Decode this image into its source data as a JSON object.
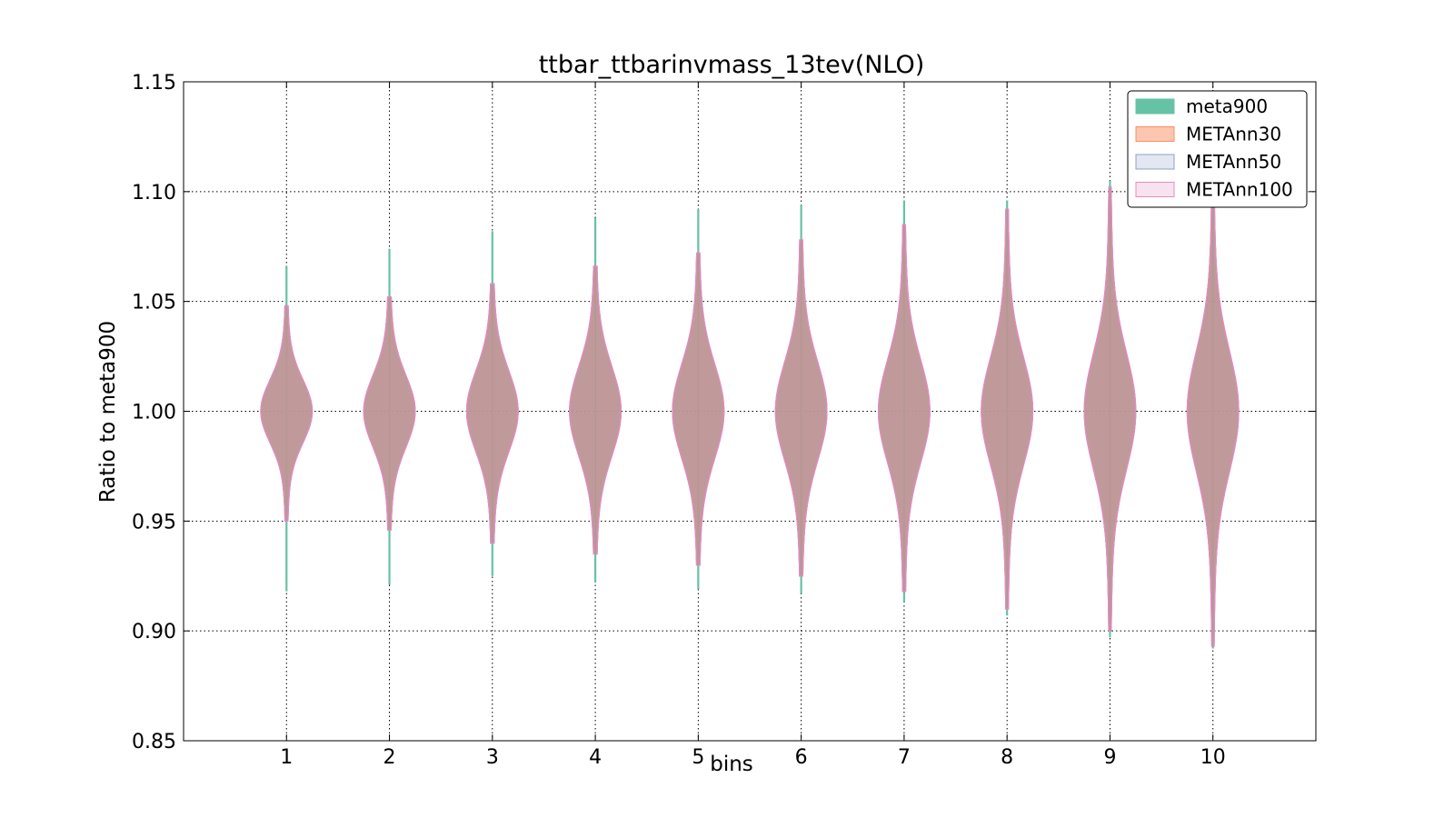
{
  "chart_data": {
    "type": "violin",
    "title": "ttbar_ttbarinvmass_13tev(NLO)",
    "xlabel": "bins",
    "ylabel": "Ratio to meta900",
    "ylim": [
      0.85,
      1.15
    ],
    "xlim": [
      0,
      11
    ],
    "yticks": [
      "0.85",
      "0.90",
      "0.95",
      "1.00",
      "1.05",
      "1.10",
      "1.15"
    ],
    "xticks": [
      "1",
      "2",
      "3",
      "4",
      "5",
      "6",
      "7",
      "8",
      "9",
      "10"
    ],
    "grid": true,
    "legend_position": "top-right",
    "series": [
      {
        "name": "meta900",
        "color": "#66c2a5",
        "stroke": "#66c2a5",
        "fill_opacity": 1,
        "bins": [
          {
            "min": 0.918,
            "max": 1.066,
            "center": 1.0,
            "width": 0.022
          },
          {
            "min": 0.921,
            "max": 1.074,
            "center": 1.0,
            "width": 0.022
          },
          {
            "min": 0.925,
            "max": 1.082,
            "center": 1.0,
            "width": 0.022
          },
          {
            "min": 0.922,
            "max": 1.088,
            "center": 1.0,
            "width": 0.022
          },
          {
            "min": 0.919,
            "max": 1.092,
            "center": 1.0,
            "width": 0.022
          },
          {
            "min": 0.917,
            "max": 1.094,
            "center": 1.0,
            "width": 0.022
          },
          {
            "min": 0.913,
            "max": 1.096,
            "center": 1.0,
            "width": 0.022
          },
          {
            "min": 0.907,
            "max": 1.096,
            "center": 1.0,
            "width": 0.022
          },
          {
            "min": 0.897,
            "max": 1.105,
            "center": 1.0,
            "width": 0.022
          },
          {
            "min": 0.892,
            "max": 1.108,
            "center": 1.0,
            "width": 0.022
          }
        ]
      },
      {
        "name": "METAnn30",
        "color": "#fc8d62",
        "stroke": "#fc8d62",
        "fill_opacity": 0.5,
        "bins": [
          {
            "min": 0.95,
            "max": 1.048,
            "center": 1.0,
            "width": 0.5,
            "sigma": 0.014
          },
          {
            "min": 0.946,
            "max": 1.052,
            "center": 1.0,
            "width": 0.5,
            "sigma": 0.016
          },
          {
            "min": 0.94,
            "max": 1.058,
            "center": 1.0,
            "width": 0.5,
            "sigma": 0.018
          },
          {
            "min": 0.935,
            "max": 1.066,
            "center": 1.0,
            "width": 0.5,
            "sigma": 0.02
          },
          {
            "min": 0.93,
            "max": 1.072,
            "center": 1.0,
            "width": 0.5,
            "sigma": 0.021
          },
          {
            "min": 0.925,
            "max": 1.078,
            "center": 1.0,
            "width": 0.5,
            "sigma": 0.022
          },
          {
            "min": 0.918,
            "max": 1.085,
            "center": 1.0,
            "width": 0.5,
            "sigma": 0.023
          },
          {
            "min": 0.91,
            "max": 1.092,
            "center": 1.0,
            "width": 0.5,
            "sigma": 0.024
          },
          {
            "min": 0.9,
            "max": 1.102,
            "center": 1.0,
            "width": 0.5,
            "sigma": 0.026
          },
          {
            "min": 0.893,
            "max": 1.108,
            "center": 1.0,
            "width": 0.5,
            "sigma": 0.027
          }
        ]
      },
      {
        "name": "METAnn50",
        "color": "#8da0cb",
        "stroke": "#8da0cb",
        "fill_opacity": 0.25,
        "bins": [
          {
            "min": 0.95,
            "max": 1.048,
            "center": 1.0,
            "width": 0.5,
            "sigma": 0.014
          },
          {
            "min": 0.946,
            "max": 1.052,
            "center": 1.0,
            "width": 0.5,
            "sigma": 0.016
          },
          {
            "min": 0.94,
            "max": 1.058,
            "center": 1.0,
            "width": 0.5,
            "sigma": 0.018
          },
          {
            "min": 0.935,
            "max": 1.066,
            "center": 1.0,
            "width": 0.5,
            "sigma": 0.02
          },
          {
            "min": 0.93,
            "max": 1.072,
            "center": 1.0,
            "width": 0.5,
            "sigma": 0.021
          },
          {
            "min": 0.925,
            "max": 1.078,
            "center": 1.0,
            "width": 0.5,
            "sigma": 0.022
          },
          {
            "min": 0.918,
            "max": 1.085,
            "center": 1.0,
            "width": 0.5,
            "sigma": 0.023
          },
          {
            "min": 0.91,
            "max": 1.092,
            "center": 1.0,
            "width": 0.5,
            "sigma": 0.024
          },
          {
            "min": 0.9,
            "max": 1.102,
            "center": 1.0,
            "width": 0.5,
            "sigma": 0.026
          },
          {
            "min": 0.893,
            "max": 1.108,
            "center": 1.0,
            "width": 0.5,
            "sigma": 0.027
          }
        ]
      },
      {
        "name": "METAnn100",
        "color": "#e78ac3",
        "stroke": "#e78ac3",
        "fill_opacity": 0.1,
        "bins": [
          {
            "min": 0.95,
            "max": 1.048,
            "center": 1.0,
            "width": 0.5,
            "sigma": 0.014
          },
          {
            "min": 0.946,
            "max": 1.052,
            "center": 1.0,
            "width": 0.5,
            "sigma": 0.016
          },
          {
            "min": 0.94,
            "max": 1.058,
            "center": 1.0,
            "width": 0.5,
            "sigma": 0.018
          },
          {
            "min": 0.935,
            "max": 1.066,
            "center": 1.0,
            "width": 0.5,
            "sigma": 0.02
          },
          {
            "min": 0.93,
            "max": 1.072,
            "center": 1.0,
            "width": 0.5,
            "sigma": 0.021
          },
          {
            "min": 0.925,
            "max": 1.078,
            "center": 1.0,
            "width": 0.5,
            "sigma": 0.022
          },
          {
            "min": 0.918,
            "max": 1.085,
            "center": 1.0,
            "width": 0.5,
            "sigma": 0.023
          },
          {
            "min": 0.91,
            "max": 1.092,
            "center": 1.0,
            "width": 0.5,
            "sigma": 0.024
          },
          {
            "min": 0.9,
            "max": 1.102,
            "center": 1.0,
            "width": 0.5,
            "sigma": 0.026
          },
          {
            "min": 0.893,
            "max": 1.108,
            "center": 1.0,
            "width": 0.5,
            "sigma": 0.027
          }
        ]
      }
    ]
  }
}
